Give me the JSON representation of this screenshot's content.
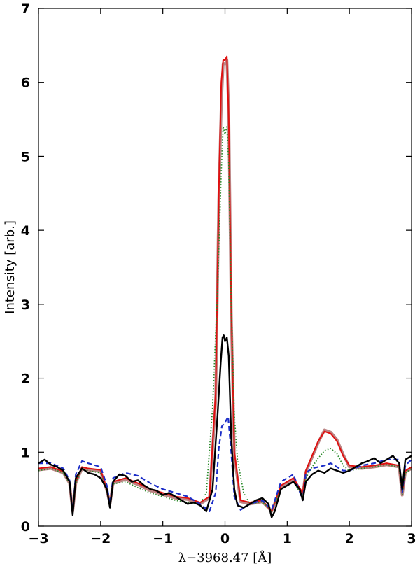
{
  "chart_data": {
    "type": "line",
    "xlabel": "λ−3968.47 [Å]",
    "ylabel": "Intensity [arb.]",
    "xlim": [
      -3,
      3
    ],
    "ylim": [
      0,
      7
    ],
    "xticks": [
      -3,
      -2,
      -1,
      0,
      1,
      2,
      3
    ],
    "yticks": [
      0,
      1,
      2,
      3,
      4,
      5,
      6,
      7
    ],
    "xtick_labels": [
      "−3",
      "−2",
      "−1",
      "0",
      "1",
      "2",
      "3"
    ],
    "ytick_labels": [
      "0",
      "1",
      "2",
      "3",
      "4",
      "5",
      "6",
      "7"
    ],
    "grid": false,
    "series": [
      {
        "color": "#e01010",
        "style": "solid",
        "x": [
          -3.0,
          -2.8,
          -2.6,
          -2.5,
          -2.45,
          -2.4,
          -2.3,
          -2.2,
          -2.0,
          -1.9,
          -1.85,
          -1.8,
          -1.6,
          -1.4,
          -1.2,
          -1.0,
          -0.8,
          -0.6,
          -0.4,
          -0.25,
          -0.15,
          -0.1,
          -0.06,
          -0.03,
          0.0,
          0.03,
          0.06,
          0.1,
          0.15,
          0.25,
          0.4,
          0.6,
          0.75,
          0.9,
          1.1,
          1.25,
          1.3,
          1.4,
          1.5,
          1.6,
          1.7,
          1.8,
          1.9,
          2.0,
          2.2,
          2.4,
          2.6,
          2.8,
          2.85,
          2.9,
          3.0
        ],
        "y": [
          0.78,
          0.8,
          0.74,
          0.6,
          0.2,
          0.6,
          0.8,
          0.78,
          0.76,
          0.5,
          0.3,
          0.6,
          0.65,
          0.58,
          0.5,
          0.45,
          0.4,
          0.38,
          0.32,
          0.4,
          1.8,
          4.5,
          6.0,
          6.3,
          6.3,
          6.35,
          5.5,
          3.0,
          1.0,
          0.35,
          0.32,
          0.35,
          0.2,
          0.55,
          0.65,
          0.45,
          0.75,
          0.95,
          1.15,
          1.28,
          1.25,
          1.15,
          0.95,
          0.82,
          0.8,
          0.82,
          0.85,
          0.82,
          0.45,
          0.75,
          0.8
        ]
      },
      {
        "color": "#b07070",
        "style": "thick",
        "x": [
          -3.0,
          -2.8,
          -2.6,
          -2.5,
          -2.45,
          -2.4,
          -2.3,
          -2.2,
          -2.0,
          -1.9,
          -1.85,
          -1.8,
          -1.6,
          -1.4,
          -1.2,
          -1.0,
          -0.8,
          -0.6,
          -0.4,
          -0.25,
          -0.15,
          -0.1,
          -0.06,
          -0.03,
          0.0,
          0.03,
          0.06,
          0.1,
          0.15,
          0.25,
          0.4,
          0.6,
          0.75,
          0.9,
          1.1,
          1.25,
          1.3,
          1.4,
          1.5,
          1.6,
          1.7,
          1.8,
          1.9,
          2.0,
          2.2,
          2.4,
          2.6,
          2.8,
          2.85,
          2.9,
          3.0
        ],
        "y": [
          0.76,
          0.78,
          0.72,
          0.58,
          0.2,
          0.58,
          0.78,
          0.76,
          0.74,
          0.48,
          0.3,
          0.58,
          0.63,
          0.56,
          0.48,
          0.43,
          0.38,
          0.36,
          0.3,
          0.38,
          1.7,
          4.4,
          5.7,
          6.25,
          6.25,
          6.3,
          5.6,
          2.9,
          0.95,
          0.33,
          0.3,
          0.33,
          0.2,
          0.53,
          0.63,
          0.43,
          0.73,
          0.93,
          1.13,
          1.3,
          1.27,
          1.17,
          0.97,
          0.8,
          0.78,
          0.8,
          0.83,
          0.8,
          0.42,
          0.73,
          0.78
        ]
      },
      {
        "color": "#2a8a2a",
        "style": "dotted",
        "x": [
          -3.0,
          -2.8,
          -2.6,
          -2.5,
          -2.45,
          -2.4,
          -2.3,
          -2.2,
          -2.0,
          -1.9,
          -1.85,
          -1.8,
          -1.6,
          -1.4,
          -1.2,
          -1.0,
          -0.8,
          -0.6,
          -0.4,
          -0.3,
          -0.2,
          -0.12,
          -0.06,
          -0.03,
          0.0,
          0.03,
          0.06,
          0.1,
          0.15,
          0.2,
          0.3,
          0.4,
          0.6,
          0.75,
          0.9,
          1.1,
          1.25,
          1.3,
          1.4,
          1.5,
          1.6,
          1.7,
          1.8,
          1.9,
          2.0,
          2.2,
          2.4,
          2.6,
          2.8,
          2.85,
          2.9,
          3.0
        ],
        "y": [
          0.75,
          0.78,
          0.72,
          0.58,
          0.2,
          0.58,
          0.77,
          0.75,
          0.72,
          0.48,
          0.3,
          0.57,
          0.6,
          0.52,
          0.45,
          0.4,
          0.35,
          0.32,
          0.3,
          0.45,
          1.6,
          3.2,
          4.8,
          5.4,
          5.3,
          5.4,
          4.9,
          3.0,
          1.5,
          0.9,
          0.45,
          0.3,
          0.33,
          0.2,
          0.5,
          0.6,
          0.4,
          0.65,
          0.8,
          0.92,
          1.02,
          1.05,
          0.98,
          0.82,
          0.75,
          0.78,
          0.8,
          0.83,
          0.8,
          0.42,
          0.72,
          0.78
        ]
      },
      {
        "color": "#1c2ec8",
        "style": "dashed",
        "x": [
          -3.0,
          -2.8,
          -2.6,
          -2.5,
          -2.45,
          -2.4,
          -2.3,
          -2.2,
          -2.0,
          -1.9,
          -1.85,
          -1.8,
          -1.6,
          -1.4,
          -1.2,
          -1.0,
          -0.8,
          -0.6,
          -0.4,
          -0.25,
          -0.15,
          -0.1,
          -0.05,
          0.0,
          0.05,
          0.1,
          0.15,
          0.25,
          0.4,
          0.6,
          0.75,
          0.9,
          1.1,
          1.25,
          1.3,
          1.4,
          1.5,
          1.6,
          1.7,
          1.8,
          1.9,
          2.0,
          2.2,
          2.4,
          2.6,
          2.8,
          2.85,
          2.9,
          3.0
        ],
        "y": [
          0.85,
          0.85,
          0.78,
          0.62,
          0.18,
          0.7,
          0.88,
          0.85,
          0.8,
          0.55,
          0.3,
          0.65,
          0.72,
          0.68,
          0.58,
          0.5,
          0.45,
          0.4,
          0.3,
          0.2,
          0.45,
          1.05,
          1.35,
          1.4,
          1.48,
          1.0,
          0.4,
          0.22,
          0.3,
          0.35,
          0.22,
          0.6,
          0.7,
          0.35,
          0.72,
          0.78,
          0.8,
          0.82,
          0.85,
          0.8,
          0.75,
          0.75,
          0.82,
          0.85,
          0.9,
          0.9,
          0.45,
          0.82,
          0.9
        ]
      },
      {
        "color": "#000000",
        "style": "solid",
        "x": [
          -3.0,
          -2.9,
          -2.8,
          -2.7,
          -2.6,
          -2.5,
          -2.45,
          -2.4,
          -2.3,
          -2.2,
          -2.1,
          -2.0,
          -1.9,
          -1.85,
          -1.8,
          -1.7,
          -1.6,
          -1.5,
          -1.4,
          -1.3,
          -1.2,
          -1.1,
          -1.0,
          -0.9,
          -0.8,
          -0.7,
          -0.6,
          -0.5,
          -0.4,
          -0.3,
          -0.2,
          -0.12,
          -0.07,
          -0.04,
          -0.02,
          0.0,
          0.03,
          0.06,
          0.1,
          0.15,
          0.2,
          0.3,
          0.4,
          0.5,
          0.6,
          0.7,
          0.75,
          0.8,
          0.9,
          1.0,
          1.1,
          1.2,
          1.25,
          1.3,
          1.4,
          1.5,
          1.6,
          1.7,
          1.8,
          1.9,
          2.0,
          2.1,
          2.2,
          2.3,
          2.4,
          2.5,
          2.6,
          2.7,
          2.8,
          2.85,
          2.9,
          3.0
        ],
        "y": [
          0.85,
          0.9,
          0.83,
          0.8,
          0.75,
          0.6,
          0.15,
          0.65,
          0.78,
          0.72,
          0.7,
          0.65,
          0.5,
          0.25,
          0.6,
          0.7,
          0.68,
          0.6,
          0.62,
          0.55,
          0.5,
          0.48,
          0.42,
          0.45,
          0.4,
          0.35,
          0.3,
          0.32,
          0.28,
          0.2,
          0.5,
          1.5,
          2.2,
          2.55,
          2.58,
          2.5,
          2.55,
          2.3,
          1.2,
          0.5,
          0.28,
          0.25,
          0.3,
          0.35,
          0.38,
          0.3,
          0.12,
          0.2,
          0.5,
          0.55,
          0.6,
          0.5,
          0.35,
          0.6,
          0.7,
          0.75,
          0.72,
          0.78,
          0.75,
          0.72,
          0.75,
          0.8,
          0.85,
          0.88,
          0.92,
          0.85,
          0.9,
          0.95,
          0.85,
          0.5,
          0.9,
          0.95
        ]
      }
    ]
  }
}
